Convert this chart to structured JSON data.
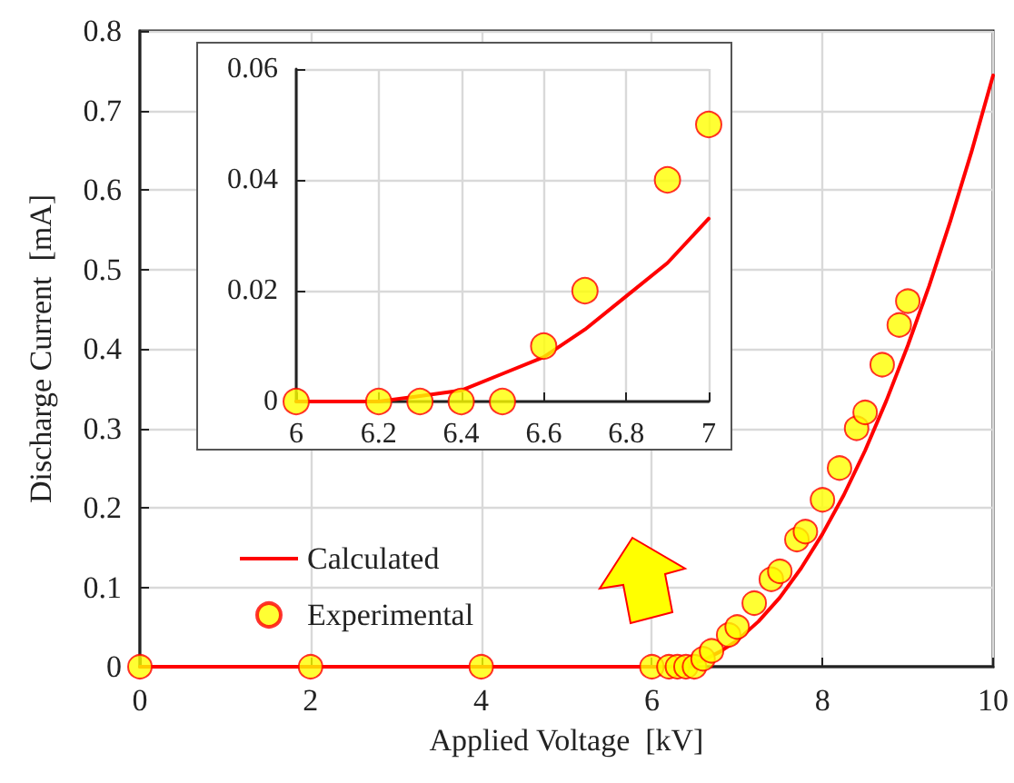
{
  "chart_data": [
    {
      "type": "scatter",
      "xlabel": "Applied Voltage  [kV]",
      "ylabel": "Discharge Current  [mA]",
      "xlim": [
        0,
        10
      ],
      "xticks": [
        0,
        2,
        4,
        6,
        8,
        10
      ],
      "ylim": [
        0,
        0.8
      ],
      "yticks": [
        0,
        0.1,
        0.2,
        0.3,
        0.4,
        0.5,
        0.6,
        0.7,
        0.8
      ],
      "grid": true,
      "legend": "bottom left",
      "series": [
        {
          "name": "Calculated",
          "type": "line",
          "color": "#ff0000",
          "marker": "none",
          "line_style": "solid",
          "x": [
            0,
            6.2,
            6.4,
            6.6,
            6.8,
            7,
            7.25,
            7.5,
            7.75,
            8,
            8.25,
            8.5,
            8.75,
            9,
            9.25,
            9.5,
            9.75,
            10
          ],
          "values": [
            0,
            0,
            0.002,
            0.008,
            0.019,
            0.033,
            0.057,
            0.087,
            0.124,
            0.167,
            0.216,
            0.272,
            0.335,
            0.404,
            0.479,
            0.561,
            0.649,
            0.744
          ]
        },
        {
          "name": "Experimental",
          "color": "#ffff00",
          "marker": "circle",
          "x": [
            0,
            2,
            4,
            6,
            6.2,
            6.3,
            6.4,
            6.5,
            6.6,
            6.7,
            6.9,
            7,
            7.2,
            7.4,
            7.5,
            7.7,
            7.8,
            8,
            8.2,
            8.4,
            8.5,
            8.7,
            8.9,
            9
          ],
          "values": [
            0,
            0,
            0,
            0,
            0,
            0,
            0,
            0,
            0.01,
            0.02,
            0.04,
            0.05,
            0.08,
            0.11,
            0.12,
            0.16,
            0.17,
            0.21,
            0.25,
            0.3,
            0.32,
            0.38,
            0.43,
            0.46
          ]
        }
      ]
    },
    {
      "type": "scatter",
      "xlim": [
        6,
        7
      ],
      "xticks": [
        6,
        6.2,
        6.4,
        6.6,
        6.8,
        7
      ],
      "ylim": [
        0,
        0.06
      ],
      "yticks": [
        0,
        0.02,
        0.04,
        0.06
      ],
      "grid": true,
      "series": [
        {
          "type": "line",
          "color": "#ff0000",
          "marker": "none",
          "line_style": "solid",
          "x": [
            6,
            6.2,
            6.3,
            6.4,
            6.5,
            6.6,
            6.7,
            6.8,
            6.9,
            7
          ],
          "values": [
            0,
            0,
            0.001,
            0.002,
            0.005,
            0.008,
            0.013,
            0.019,
            0.025,
            0.033
          ]
        },
        {
          "color": "#ffff00",
          "marker": "circle",
          "x": [
            6,
            6.2,
            6.3,
            6.4,
            6.5,
            6.6,
            6.7,
            6.9,
            7
          ],
          "values": [
            0,
            0,
            0,
            0,
            0,
            0.01,
            0.02,
            0.04,
            0.05
          ]
        }
      ]
    }
  ]
}
